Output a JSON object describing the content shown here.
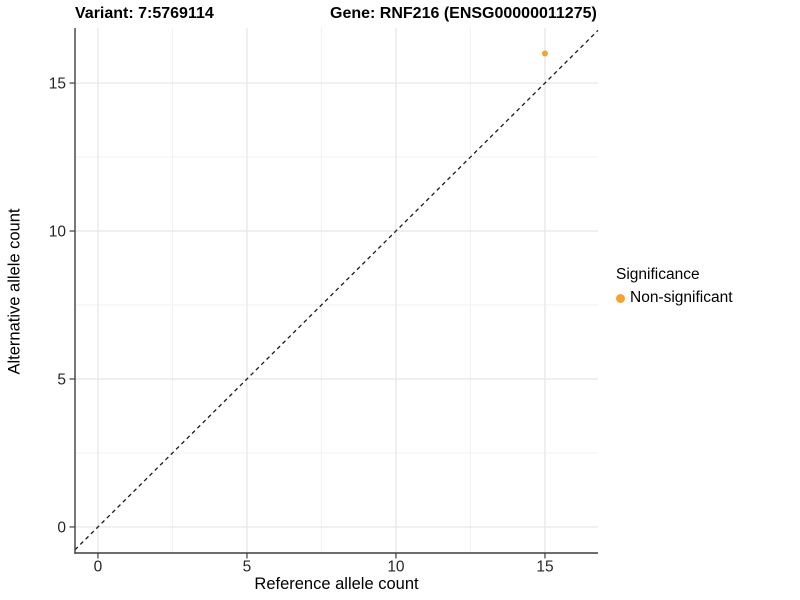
{
  "chart_data": {
    "type": "scatter",
    "title_variant": "Variant: 7:5769114",
    "title_gene": "Gene: RNF216 (ENSG00000011275)",
    "xlabel": "Reference allele count",
    "ylabel": "Alternative allele count",
    "xlim": [
      -0.77,
      16.78
    ],
    "ylim": [
      -0.88,
      16.86
    ],
    "xticks": [
      0,
      5,
      10,
      15
    ],
    "yticks": [
      0,
      5,
      10,
      15
    ],
    "xticks_minor": [
      2.5,
      7.5,
      12.5
    ],
    "yticks_minor": [
      2.5,
      7.5,
      12.5
    ],
    "grid": true,
    "identity_line": {
      "type": "abline",
      "slope": 1,
      "intercept": 0,
      "style": "dashed",
      "color": "#1A1A1A"
    },
    "series": [
      {
        "name": "Non-significant",
        "color": "#F9A12F",
        "marker": "circle",
        "points": [
          {
            "x": 15,
            "y": 16
          }
        ]
      }
    ],
    "legend": {
      "title": "Significance",
      "position": "right",
      "items": [
        {
          "label": "Non-significant",
          "color": "#F9A12F"
        }
      ]
    },
    "colors": {
      "grid_major": "#E5E5E5",
      "grid_minor": "#F2F2F2",
      "axis_line": "#3F3F3F",
      "tick_text": "#262626",
      "background": "#FFFFFF"
    }
  }
}
